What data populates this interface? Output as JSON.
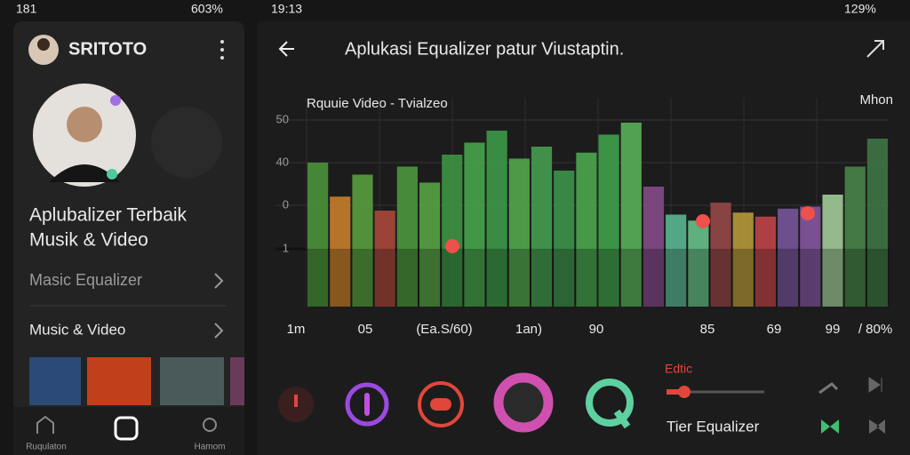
{
  "left_status": {
    "time": "181",
    "battery": "603%"
  },
  "right_status": {
    "time": "19:13",
    "battery": "129%"
  },
  "profile": {
    "name": "SRITOTO"
  },
  "left_panel": {
    "headline": [
      "Aplubalizer Terbaik",
      "Musik & Video"
    ],
    "menu": [
      "Masic Equalizer",
      "Music & Video"
    ],
    "nav": [
      "Ruqulaton",
      "Hamom"
    ]
  },
  "header": {
    "title": "Aplukasi  Equalizer patur Viustaptin."
  },
  "equalizer": {
    "label": "Rquuie Video - Tvialzeo",
    "corner_label": "Mhon",
    "y_labels": [
      "50",
      "40",
      "0",
      "1"
    ],
    "x_labels": [
      "1m",
      "05",
      "(Ea.S/60)",
      "1an)",
      "90",
      "85",
      "69",
      "99",
      "/ 80%"
    ],
    "range": [
      0,
      100
    ],
    "bands": [
      {
        "value": 72,
        "color": "#4e9a3c"
      },
      {
        "value": 55,
        "color": "#d0842c"
      },
      {
        "value": 66,
        "color": "#5aa640"
      },
      {
        "value": 48,
        "color": "#b04a3c"
      },
      {
        "value": 70,
        "color": "#4f9d3f"
      },
      {
        "value": 62,
        "color": "#5aaa48"
      },
      {
        "value": 76,
        "color": "#3f9a45"
      },
      {
        "value": 82,
        "color": "#49ad4e"
      },
      {
        "value": 88,
        "color": "#3ea04a"
      },
      {
        "value": 74,
        "color": "#55b04f"
      },
      {
        "value": 80,
        "color": "#47a552"
      },
      {
        "value": 68,
        "color": "#3d9a4c"
      },
      {
        "value": 77,
        "color": "#4caf50"
      },
      {
        "value": 86,
        "color": "#41a84c"
      },
      {
        "value": 92,
        "color": "#5cb85c"
      },
      {
        "value": 60,
        "color": "#8a4d8f"
      },
      {
        "value": 46,
        "color": "#5cc09a"
      },
      {
        "value": 43,
        "color": "#6acb8e"
      },
      {
        "value": 52,
        "color": "#9c4a4a"
      },
      {
        "value": 47,
        "color": "#c0a03c"
      },
      {
        "value": 45,
        "color": "#c8474a"
      },
      {
        "value": 49,
        "color": "#7a58a0"
      },
      {
        "value": 50,
        "color": "#8a5aa8"
      },
      {
        "value": 56,
        "color": "#a8d4a0"
      },
      {
        "value": 70,
        "color": "#4a8a4a"
      },
      {
        "value": 84,
        "color": "#3f7a45"
      }
    ]
  },
  "controls": {
    "slider_label": "Edtic",
    "preset": "Tier Equalizer"
  }
}
